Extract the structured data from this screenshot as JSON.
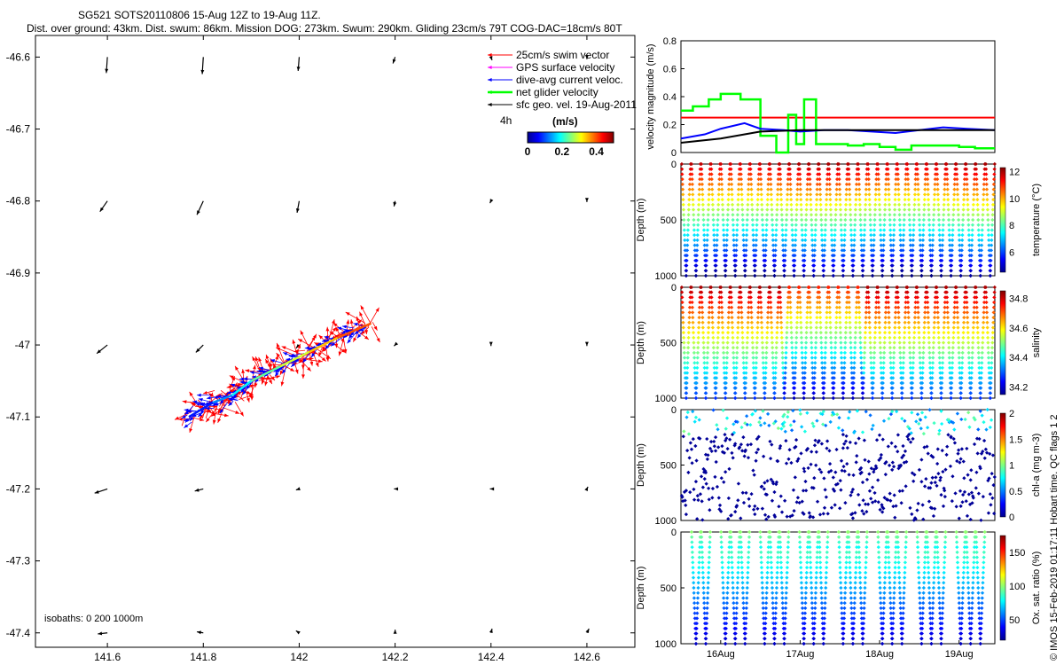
{
  "header": {
    "title_line1": "SG521 SOTS20110806 15-Aug 12Z to 19-Aug 11Z.",
    "title_line2": "Dist. over ground: 43km. Dist. swum: 86km. Mission DOG: 273km. Swum: 290km. Gliding 23cm/s 79T COG-DAC=18cm/s 80T"
  },
  "colors": {
    "swim": "#ff0000",
    "gps": "#ff00ff",
    "dac": "#0000ff",
    "net": "#00ff00",
    "geo": "#000000"
  },
  "chart_data": [
    {
      "type": "scatter",
      "title": "",
      "xlabel": "",
      "ylabel": "",
      "xlim": [
        141.45,
        142.7
      ],
      "ylim": [
        -47.42,
        -46.57
      ],
      "xticks": [
        "141.6",
        "141.8",
        "142",
        "142.2",
        "142.4",
        "142.6"
      ],
      "xtick_values": [
        141.6,
        141.8,
        142.0,
        142.2,
        142.4,
        142.6
      ],
      "yticks": [
        "-46.6",
        "-46.7",
        "-46.8",
        "-46.9",
        "-47",
        "-47.1",
        "-47.2",
        "-47.3",
        "-47.4"
      ],
      "ytick_values": [
        -46.6,
        -46.7,
        -46.8,
        -46.9,
        -47.0,
        -47.1,
        -47.2,
        -47.3,
        -47.4
      ],
      "legend": {
        "placement": "top-right",
        "entries": [
          "25cm/s swim vector",
          "GPS surface velocity",
          "dive-avg current veloc.",
          "net glider velocity",
          "sfc geo. vel. 19-Aug-2011"
        ],
        "time_label": "4h"
      },
      "colorbar": {
        "label": "(m/s)",
        "ticks": [
          "0",
          "0.2",
          "0.4"
        ],
        "tick_values": [
          0,
          0.2,
          0.4
        ],
        "range": [
          0,
          0.5
        ]
      },
      "isobaths_label": "isobaths: 0   200  1000m",
      "geo_vectors": [
        {
          "lon": 141.6,
          "lat": -46.6,
          "u": -0.01,
          "v": -0.15
        },
        {
          "lon": 141.8,
          "lat": -46.6,
          "u": -0.01,
          "v": -0.16
        },
        {
          "lon": 142.0,
          "lat": -46.6,
          "u": -0.01,
          "v": -0.13
        },
        {
          "lon": 142.2,
          "lat": -46.6,
          "u": -0.02,
          "v": -0.06
        },
        {
          "lon": 142.4,
          "lat": -46.6,
          "u": 0.01,
          "v": -0.03
        },
        {
          "lon": 142.6,
          "lat": -46.6,
          "u": 0.0,
          "v": -0.02
        },
        {
          "lon": 141.6,
          "lat": -46.8,
          "u": -0.07,
          "v": -0.1
        },
        {
          "lon": 141.8,
          "lat": -46.8,
          "u": -0.06,
          "v": -0.13
        },
        {
          "lon": 142.0,
          "lat": -46.8,
          "u": -0.02,
          "v": -0.11
        },
        {
          "lon": 142.2,
          "lat": -46.8,
          "u": -0.01,
          "v": -0.05
        },
        {
          "lon": 142.4,
          "lat": -46.8,
          "u": -0.01,
          "v": -0.02
        },
        {
          "lon": 142.6,
          "lat": -46.8,
          "u": 0.0,
          "v": -0.01
        },
        {
          "lon": 141.6,
          "lat": -47.0,
          "u": -0.1,
          "v": -0.08
        },
        {
          "lon": 141.8,
          "lat": -47.0,
          "u": -0.07,
          "v": -0.07
        },
        {
          "lon": 142.0,
          "lat": -47.0,
          "u": -0.03,
          "v": -0.03
        },
        {
          "lon": 142.2,
          "lat": -47.0,
          "u": -0.01,
          "v": -0.01
        },
        {
          "lon": 142.4,
          "lat": -47.0,
          "u": 0.0,
          "v": -0.01
        },
        {
          "lon": 142.6,
          "lat": -47.0,
          "u": 0.0,
          "v": -0.01
        },
        {
          "lon": 141.6,
          "lat": -47.2,
          "u": -0.12,
          "v": -0.04
        },
        {
          "lon": 141.8,
          "lat": -47.2,
          "u": -0.08,
          "v": -0.02
        },
        {
          "lon": 142.0,
          "lat": -47.2,
          "u": -0.03,
          "v": -0.01
        },
        {
          "lon": 142.2,
          "lat": -47.2,
          "u": -0.01,
          "v": 0.0
        },
        {
          "lon": 142.4,
          "lat": -47.2,
          "u": -0.01,
          "v": 0.0
        },
        {
          "lon": 142.6,
          "lat": -47.2,
          "u": 0.01,
          "v": 0.02
        },
        {
          "lon": 141.6,
          "lat": -47.4,
          "u": -0.09,
          "v": -0.01
        },
        {
          "lon": 141.8,
          "lat": -47.4,
          "u": -0.06,
          "v": 0.01
        },
        {
          "lon": 142.0,
          "lat": -47.4,
          "u": -0.03,
          "v": 0.02
        },
        {
          "lon": 142.2,
          "lat": -47.4,
          "u": 0.0,
          "v": 0.03
        },
        {
          "lon": 142.4,
          "lat": -47.4,
          "u": 0.01,
          "v": 0.04
        },
        {
          "lon": 142.6,
          "lat": -47.4,
          "u": 0.02,
          "v": 0.04
        }
      ],
      "glider_track": {
        "lon": [
          141.77,
          141.82,
          141.86,
          141.9,
          141.96,
          142.02,
          142.08,
          142.15
        ],
        "lat": [
          -47.1,
          -47.08,
          -47.07,
          -47.05,
          -47.03,
          -47.01,
          -46.99,
          -46.97
        ]
      }
    },
    {
      "type": "line",
      "ylabel": "velocity magnitude (m/s)",
      "ylim": [
        0,
        0.8
      ],
      "yticks": [
        "0",
        "0.2",
        "0.4",
        "0.6",
        "0.8"
      ],
      "ytick_values": [
        0,
        0.2,
        0.4,
        0.6,
        0.8
      ],
      "xlim": [
        15.5,
        19.45
      ],
      "series": [
        {
          "color": "#ff0000",
          "step": false,
          "x": [
            15.5,
            19.45
          ],
          "y": [
            0.25,
            0.25
          ]
        },
        {
          "color": "#00ff00",
          "step": true,
          "x": [
            15.5,
            15.65,
            15.85,
            16.0,
            16.25,
            16.5,
            16.7,
            16.85,
            16.95,
            17.05,
            17.2,
            17.4,
            17.6,
            17.8,
            18.0,
            18.2,
            18.4,
            18.7,
            19.0,
            19.2,
            19.45
          ],
          "y": [
            0.3,
            0.33,
            0.38,
            0.42,
            0.38,
            0.12,
            0.0,
            0.27,
            0.06,
            0.38,
            0.06,
            0.06,
            0.05,
            0.06,
            0.04,
            0.02,
            0.05,
            0.05,
            0.04,
            0.03,
            0.03
          ]
        },
        {
          "color": "#0000ff",
          "step": false,
          "x": [
            15.5,
            15.8,
            16.0,
            16.3,
            16.5,
            16.8,
            17.0,
            17.3,
            17.6,
            17.9,
            18.2,
            18.5,
            18.8,
            19.1,
            19.45
          ],
          "y": [
            0.1,
            0.13,
            0.17,
            0.21,
            0.17,
            0.16,
            0.15,
            0.16,
            0.16,
            0.15,
            0.14,
            0.16,
            0.18,
            0.17,
            0.16
          ]
        },
        {
          "color": "#000000",
          "step": false,
          "x": [
            15.5,
            16.0,
            16.5,
            17.0,
            17.5,
            18.0,
            18.5,
            19.0,
            19.45
          ],
          "y": [
            0.07,
            0.1,
            0.15,
            0.16,
            0.16,
            0.16,
            0.16,
            0.16,
            0.16
          ]
        }
      ]
    },
    {
      "type": "scatter",
      "ylabel": "Depth (m)",
      "clabel": "temperature (°C)",
      "ylim": [
        1000,
        0
      ],
      "yticks": [
        "0",
        "500",
        "1000"
      ],
      "ytick_values": [
        0,
        500,
        1000
      ],
      "cticks": [
        "6",
        "8",
        "10",
        "12"
      ],
      "ctick_values": [
        6,
        8,
        10,
        12
      ],
      "crange": [
        4.5,
        12.3
      ],
      "field": "temperature",
      "dives": 32
    },
    {
      "type": "scatter",
      "ylabel": "Depth (m)",
      "clabel": "salinity",
      "ylim": [
        1000,
        0
      ],
      "yticks": [
        "0",
        "500",
        "1000"
      ],
      "ytick_values": [
        0,
        500,
        1000
      ],
      "cticks": [
        "34.2",
        "34.4",
        "34.6",
        "34.8"
      ],
      "ctick_values": [
        34.2,
        34.4,
        34.6,
        34.8
      ],
      "crange": [
        34.15,
        34.85
      ],
      "field": "salinity",
      "dives": 32
    },
    {
      "type": "scatter",
      "ylabel": "Depth (m)",
      "clabel": "chl-a (mg m-3)",
      "ylim": [
        1000,
        0
      ],
      "yticks": [
        "0",
        "500",
        "1000"
      ],
      "ytick_values": [
        0,
        500,
        1000
      ],
      "cticks": [
        "0",
        "0.5",
        "1",
        "1.5",
        "2"
      ],
      "ctick_values": [
        0,
        0.5,
        1,
        1.5,
        2
      ],
      "crange": [
        0,
        2
      ],
      "field": "chl",
      "dives": 32
    },
    {
      "type": "scatter",
      "ylabel": "Depth (m)",
      "clabel": "Ox. sat. ratio (%)",
      "ylim": [
        1000,
        0
      ],
      "yticks": [
        "0",
        "500",
        "1000"
      ],
      "ytick_values": [
        0,
        500,
        1000
      ],
      "cticks": [
        "50",
        "100",
        "150"
      ],
      "ctick_values": [
        50,
        100,
        150
      ],
      "crange": [
        20,
        175
      ],
      "field": "oxygen",
      "dives": 32,
      "xticks": [
        "16Aug",
        "17Aug",
        "18Aug",
        "19Aug"
      ],
      "xtick_values": [
        16,
        17,
        18,
        19
      ],
      "xlim": [
        15.5,
        19.45
      ]
    }
  ],
  "footer": {
    "vertical_note": "© IMOS 15-Feb-2019 01:17:11 Hobart time. QC flags 1 2"
  }
}
